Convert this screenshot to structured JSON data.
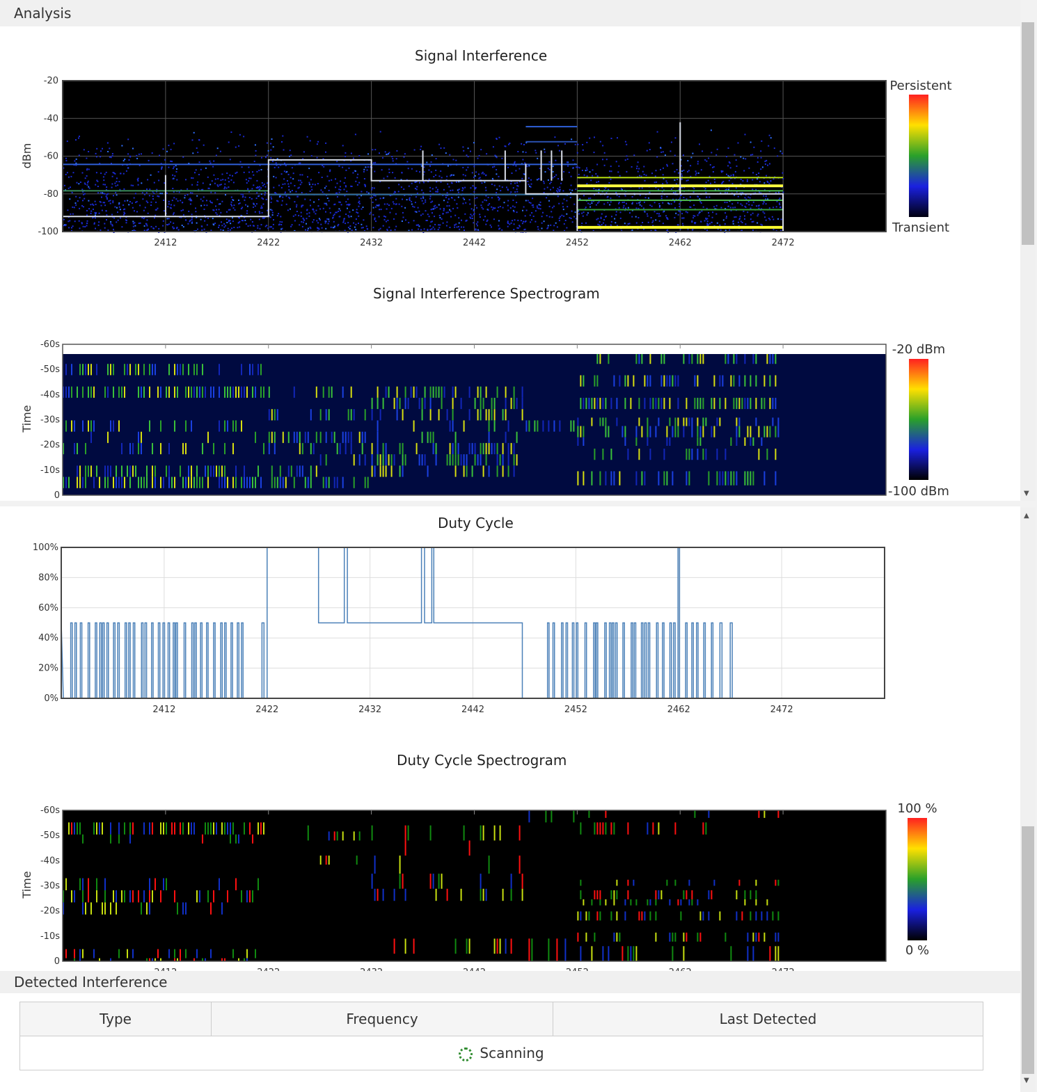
{
  "header": {
    "title": "Analysis"
  },
  "freq_ticks": [
    "2412",
    "2422",
    "2432",
    "2442",
    "2452",
    "2462",
    "2472"
  ],
  "charts": {
    "signal": {
      "title": "Signal Interference",
      "ylabel": "dBm",
      "yticks": [
        "-20",
        "-40",
        "-60",
        "-80",
        "-100"
      ],
      "legend_top": "Persistent",
      "legend_bottom": "Transient"
    },
    "signal_spec": {
      "title": "Signal Interference Spectrogram",
      "ylabel": "Time",
      "yticks": [
        "-60s",
        "-50s",
        "-40s",
        "-30s",
        "-20s",
        "-10s",
        "0"
      ],
      "legend_top": "-20 dBm",
      "legend_bottom": "-100 dBm"
    },
    "duty": {
      "title": "Duty Cycle",
      "yticks": [
        "100%",
        "80%",
        "60%",
        "40%",
        "20%",
        "0%"
      ]
    },
    "duty_spec": {
      "title": "Duty Cycle Spectrogram",
      "ylabel": "Time",
      "yticks": [
        "-60s",
        "-50s",
        "-40s",
        "-30s",
        "-20s",
        "-10s",
        "0"
      ],
      "legend_top": "100 %",
      "legend_bottom": "0 %"
    }
  },
  "chart_data": [
    {
      "type": "scatter",
      "title": "Signal Interference",
      "ylabel": "dBm",
      "xlim": [
        2402,
        2482
      ],
      "ylim": [
        -100,
        -20
      ],
      "x_ticks": [
        2412,
        2422,
        2432,
        2442,
        2452,
        2462,
        2472
      ],
      "series": [
        {
          "x": [
            2402,
            2412,
            2422,
            2432,
            2447,
            2452,
            2472
          ],
          "y": [
            -92,
            -92,
            -62,
            -62,
            -73,
            -80,
            -80
          ]
        }
      ]
    },
    {
      "type": "heatmap",
      "title": "Signal Interference Spectrogram",
      "ylabel": "Time",
      "xlim": [
        2402,
        2482
      ],
      "ylim": [
        -60,
        0
      ],
      "colorbar": [
        "-20 dBm",
        "-100 dBm"
      ]
    },
    {
      "type": "line",
      "title": "Duty Cycle",
      "xlim": [
        2402,
        2482
      ],
      "ylim": [
        0,
        100
      ],
      "x": [
        2402,
        2422,
        2422,
        2427,
        2427,
        2447,
        2447,
        2472,
        2482
      ],
      "y": [
        50,
        0,
        100,
        100,
        50,
        50,
        0,
        0,
        0
      ]
    },
    {
      "type": "heatmap",
      "title": "Duty Cycle Spectrogram",
      "ylabel": "Time",
      "xlim": [
        2402,
        2482
      ],
      "ylim": [
        -60,
        0
      ],
      "colorbar": [
        "100 %",
        "0 %"
      ]
    }
  ],
  "interference": {
    "title": "Detected Interference",
    "columns": [
      "Type",
      "Frequency",
      "Last Detected"
    ],
    "status": "Scanning"
  }
}
